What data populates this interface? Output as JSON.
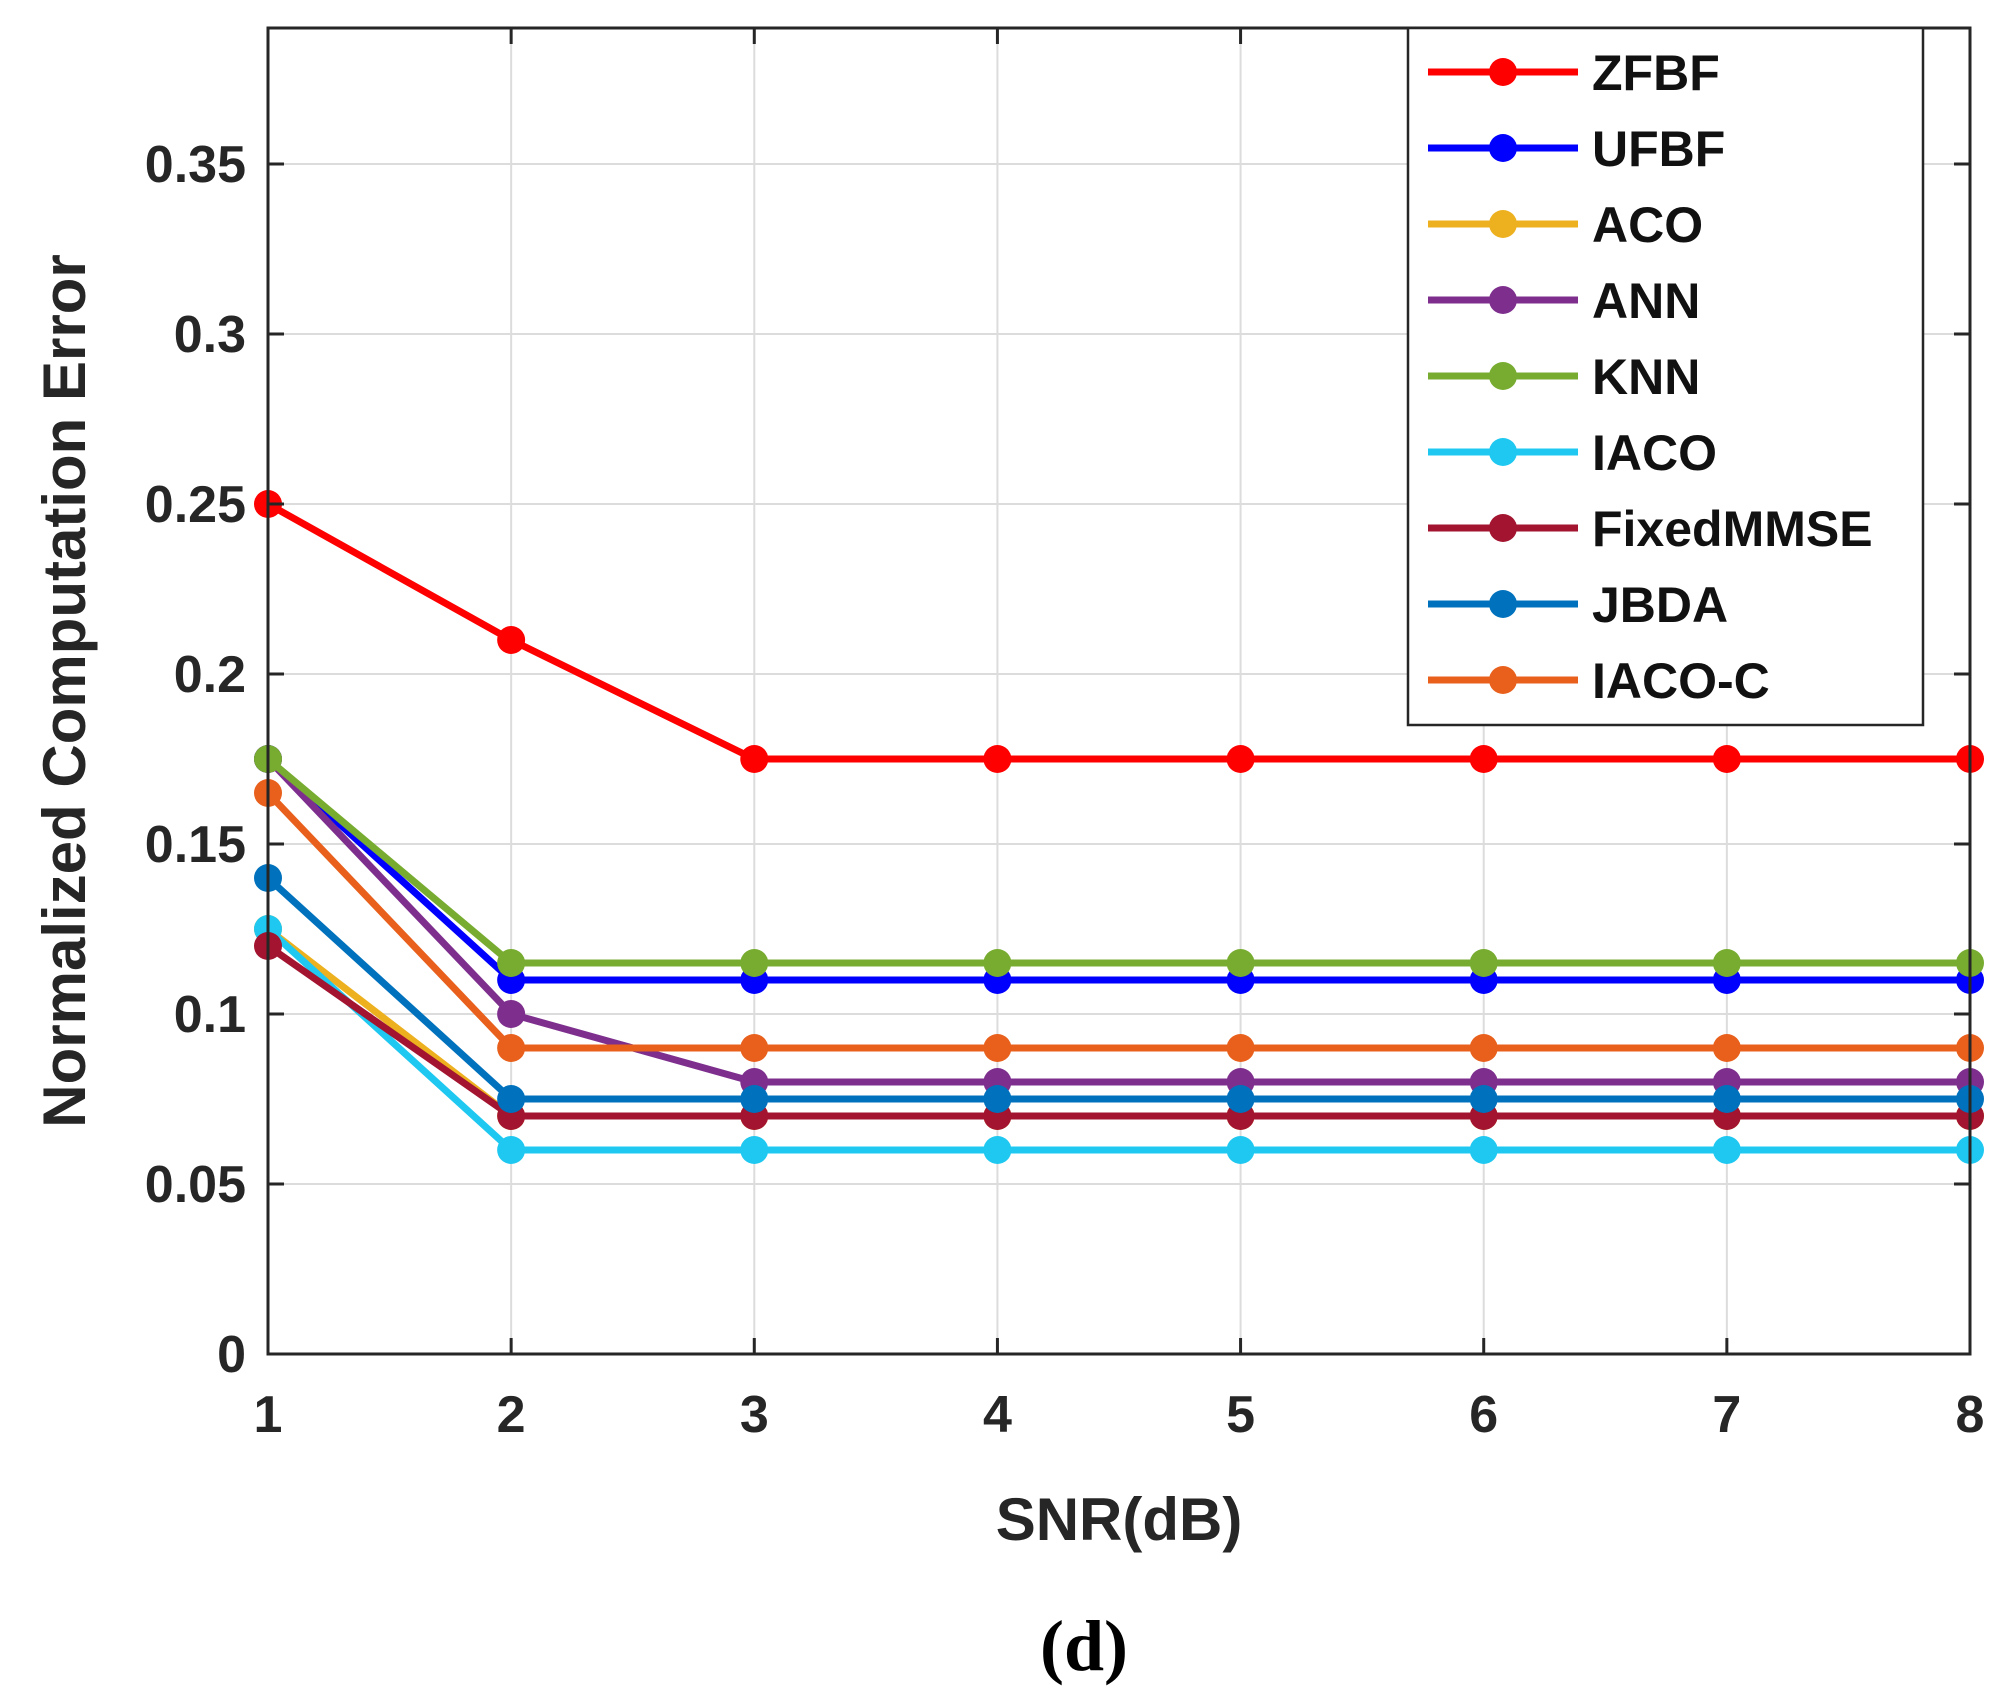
{
  "chart_data": {
    "type": "line",
    "title": "",
    "caption": "(d)",
    "xlabel": "SNR(dB)",
    "ylabel": "Normalized Computation Error",
    "x": [
      1,
      2,
      3,
      4,
      5,
      6,
      7,
      8
    ],
    "xlim": [
      1,
      8
    ],
    "ylim": [
      0,
      0.39
    ],
    "xticks": [
      "1",
      "2",
      "3",
      "4",
      "5",
      "6",
      "7",
      "8"
    ],
    "yticks": [
      {
        "value": 0,
        "label": "0"
      },
      {
        "value": 0.05,
        "label": "0.05"
      },
      {
        "value": 0.1,
        "label": "0.1"
      },
      {
        "value": 0.15,
        "label": "0.15"
      },
      {
        "value": 0.2,
        "label": "0.2"
      },
      {
        "value": 0.25,
        "label": "0.25"
      },
      {
        "value": 0.3,
        "label": "0.3"
      },
      {
        "value": 0.35,
        "label": "0.35"
      }
    ],
    "grid": true,
    "legend_position": "top-right",
    "series": [
      {
        "name": "ZFBF",
        "color": "#ff0000",
        "values": [
          0.25,
          0.21,
          0.175,
          0.175,
          0.175,
          0.175,
          0.175,
          0.175
        ]
      },
      {
        "name": "UFBF",
        "color": "#0000ff",
        "values": [
          0.175,
          0.11,
          0.11,
          0.11,
          0.11,
          0.11,
          0.11,
          0.11
        ]
      },
      {
        "name": "ACO",
        "color": "#edb120",
        "values": [
          0.125,
          0.07,
          0.07,
          0.07,
          0.07,
          0.07,
          0.07,
          0.07
        ]
      },
      {
        "name": "ANN",
        "color": "#7e2f8e",
        "values": [
          0.175,
          0.1,
          0.08,
          0.08,
          0.08,
          0.08,
          0.08,
          0.08
        ]
      },
      {
        "name": "KNN",
        "color": "#77ac30",
        "values": [
          0.175,
          0.115,
          0.115,
          0.115,
          0.115,
          0.115,
          0.115,
          0.115
        ]
      },
      {
        "name": "IACO",
        "color": "#1ec8f0",
        "values": [
          0.125,
          0.06,
          0.06,
          0.06,
          0.06,
          0.06,
          0.06,
          0.06
        ]
      },
      {
        "name": "FixedMMSE",
        "color": "#a2142f",
        "values": [
          0.12,
          0.07,
          0.07,
          0.07,
          0.07,
          0.07,
          0.07,
          0.07
        ]
      },
      {
        "name": "JBDA",
        "color": "#0072bd",
        "values": [
          0.14,
          0.075,
          0.075,
          0.075,
          0.075,
          0.075,
          0.075,
          0.075
        ]
      },
      {
        "name": "IACO-C",
        "color": "#e8601c",
        "values": [
          0.165,
          0.09,
          0.09,
          0.09,
          0.09,
          0.09,
          0.09,
          0.09
        ]
      }
    ]
  }
}
